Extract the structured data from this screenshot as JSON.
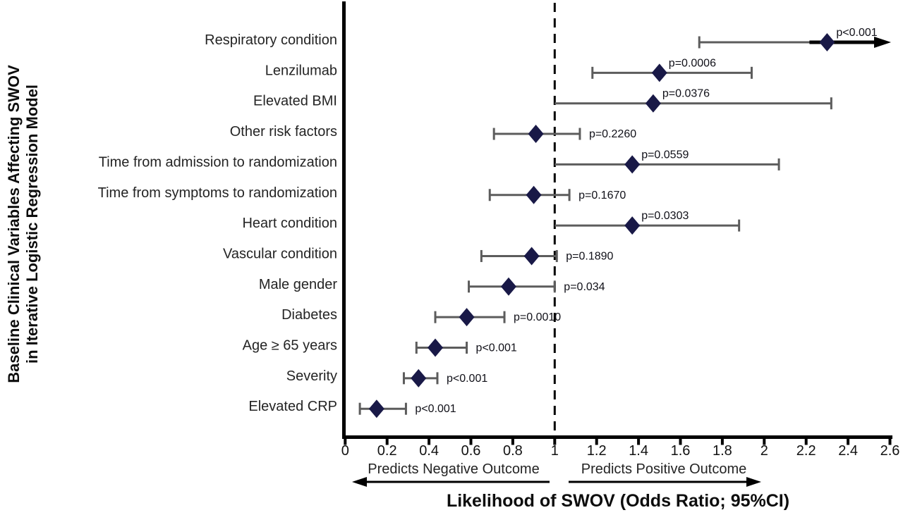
{
  "chart_data": {
    "type": "scatter",
    "subtype": "forest-plot",
    "title": "Likelihood of SWOV (Odds Ratio; 95%CI)",
    "ylabel_line1": "Baseline Clinical Variables Affecting SWOV",
    "ylabel_line2": "in Iterative Logistic Regression Model",
    "xlim": [
      0,
      2.6
    ],
    "xticks": [
      0,
      0.2,
      0.4,
      0.6,
      0.8,
      1,
      1.2,
      1.4,
      1.6,
      1.8,
      2,
      2.2,
      2.4,
      2.6
    ],
    "reference_line_x": 1,
    "grid": false,
    "legend": "none",
    "direction_labels": {
      "negative": "Predicts Negative Outcome",
      "positive": "Predicts Positive Outcome"
    },
    "colors": {
      "marker": "#191947",
      "ci_line": "#5c5c5c",
      "axis": "#000000"
    },
    "rows": [
      {
        "label": "Respiratory condition",
        "or": 2.3,
        "ci_low": 1.69,
        "ci_high": 2.6,
        "p": "p<0.001",
        "p_pos": "above",
        "cap_low": true,
        "cap_high": false,
        "arrow": true
      },
      {
        "label": "Lenzilumab",
        "or": 1.5,
        "ci_low": 1.18,
        "ci_high": 1.94,
        "p": "p=0.0006",
        "p_pos": "above",
        "cap_low": true,
        "cap_high": true,
        "arrow": false
      },
      {
        "label": "Elevated BMI",
        "or": 1.47,
        "ci_low": 1.0,
        "ci_high": 2.32,
        "p": "p=0.0376",
        "p_pos": "above",
        "cap_low": false,
        "cap_high": true,
        "arrow": false
      },
      {
        "label": "Other risk factors",
        "or": 0.91,
        "ci_low": 0.71,
        "ci_high": 1.12,
        "p": "p=0.2260",
        "p_pos": "right",
        "cap_low": true,
        "cap_high": true,
        "arrow": false
      },
      {
        "label": "Time from admission to randomization",
        "or": 1.37,
        "ci_low": 1.0,
        "ci_high": 2.07,
        "p": "p=0.0559",
        "p_pos": "above",
        "cap_low": false,
        "cap_high": true,
        "arrow": false
      },
      {
        "label": "Time from symptoms to randomization",
        "or": 0.9,
        "ci_low": 0.69,
        "ci_high": 1.07,
        "p": "p=0.1670",
        "p_pos": "right",
        "cap_low": true,
        "cap_high": true,
        "arrow": false
      },
      {
        "label": "Heart condition",
        "or": 1.37,
        "ci_low": 1.0,
        "ci_high": 1.88,
        "p": "p=0.0303",
        "p_pos": "above",
        "cap_low": false,
        "cap_high": true,
        "arrow": false
      },
      {
        "label": "Vascular condition",
        "or": 0.89,
        "ci_low": 0.65,
        "ci_high": 1.01,
        "p": "p=0.1890",
        "p_pos": "right",
        "cap_low": true,
        "cap_high": true,
        "arrow": false
      },
      {
        "label": "Male gender",
        "or": 0.78,
        "ci_low": 0.59,
        "ci_high": 1.0,
        "p": "p=0.034",
        "p_pos": "right",
        "cap_low": true,
        "cap_high": true,
        "arrow": false
      },
      {
        "label": "Diabetes",
        "or": 0.58,
        "ci_low": 0.43,
        "ci_high": 0.76,
        "p": "p=0.0010",
        "p_pos": "right",
        "cap_low": true,
        "cap_high": true,
        "arrow": false
      },
      {
        "label": "Age ≥ 65 years",
        "or": 0.43,
        "ci_low": 0.34,
        "ci_high": 0.58,
        "p": "p<0.001",
        "p_pos": "right",
        "cap_low": true,
        "cap_high": true,
        "arrow": false
      },
      {
        "label": "Severity",
        "or": 0.35,
        "ci_low": 0.28,
        "ci_high": 0.44,
        "p": "p<0.001",
        "p_pos": "right",
        "cap_low": true,
        "cap_high": true,
        "arrow": false
      },
      {
        "label": "Elevated CRP",
        "or": 0.15,
        "ci_low": 0.07,
        "ci_high": 0.29,
        "p": "p<0.001",
        "p_pos": "right",
        "cap_low": true,
        "cap_high": true,
        "arrow": false
      }
    ]
  }
}
